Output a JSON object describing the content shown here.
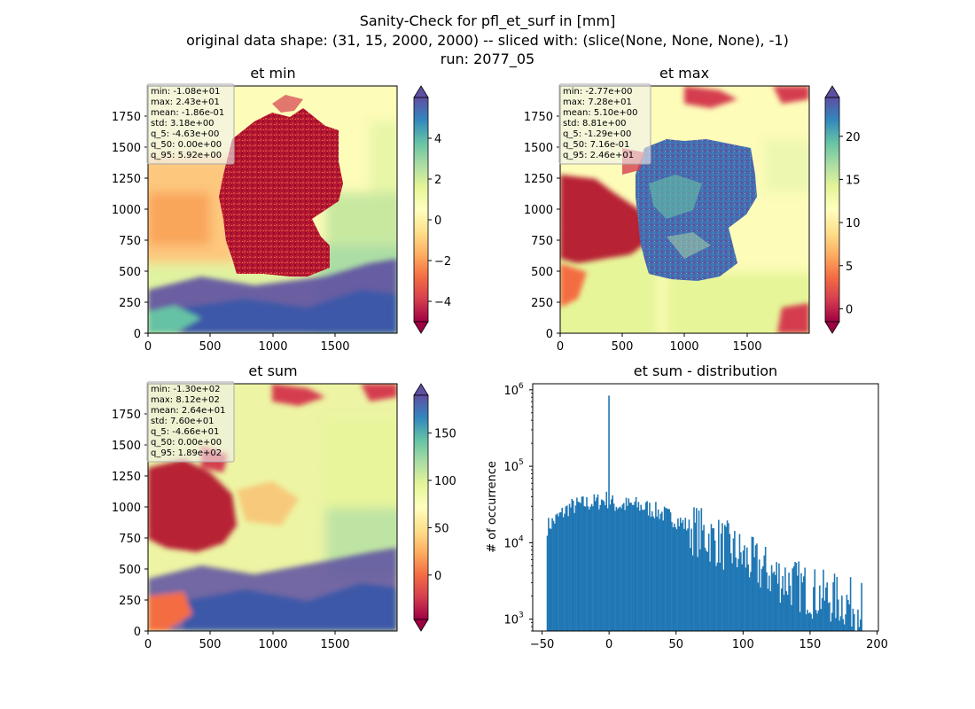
{
  "figure": {
    "title_lines": [
      "Sanity-Check for pfl_et_surf in [mm]",
      "original data shape: (31, 15, 2000, 2000) -- sliced with: (slice(None, None, None), -1)",
      "run: 2077_05"
    ]
  },
  "chart_data": [
    {
      "type": "heatmap",
      "title": "et min",
      "x_ticks": [
        "0",
        "500",
        "1000",
        "1500"
      ],
      "y_ticks": [
        "0",
        "250",
        "500",
        "750",
        "1000",
        "1250",
        "1500",
        "1750"
      ],
      "xlim": [
        0,
        2000
      ],
      "ylim": [
        0,
        2000
      ],
      "colormap": "Spectral",
      "colorbar": {
        "range": [
          -5,
          6
        ],
        "ticks": [
          "−4",
          "−2",
          "0",
          "2",
          "4"
        ],
        "tick_values": [
          -4,
          -2,
          0,
          2,
          4
        ],
        "extend": "both"
      },
      "stats": [
        "min: -1.08e+01",
        "max: 2.43e+01",
        "mean: -1.86e-01",
        "std: 3.18e+00",
        "q_5: -4.63e+00",
        "q_50: 0.00e+00",
        "q_95: 5.92e+00"
      ]
    },
    {
      "type": "heatmap",
      "title": "et max",
      "x_ticks": [
        "0",
        "500",
        "1000",
        "1500"
      ],
      "y_ticks": [
        "0",
        "250",
        "500",
        "750",
        "1000",
        "1250",
        "1500",
        "1750"
      ],
      "xlim": [
        0,
        2000
      ],
      "ylim": [
        0,
        2000
      ],
      "colormap": "Spectral",
      "colorbar": {
        "range": [
          -1.5,
          24.5
        ],
        "ticks": [
          "0",
          "5",
          "10",
          "15",
          "20"
        ],
        "tick_values": [
          0,
          5,
          10,
          15,
          20
        ],
        "extend": "both"
      },
      "stats": [
        "min: -2.77e+00",
        "max: 7.28e+01",
        "mean: 5.10e+00",
        "std: 8.81e+00",
        "q_5: -1.29e+00",
        "q_50: 7.16e-01",
        "q_95: 2.46e+01"
      ]
    },
    {
      "type": "heatmap",
      "title": "et sum",
      "x_ticks": [
        "0",
        "500",
        "1000",
        "1500"
      ],
      "y_ticks": [
        "0",
        "250",
        "500",
        "750",
        "1000",
        "1250",
        "1500",
        "1750"
      ],
      "xlim": [
        0,
        2000
      ],
      "ylim": [
        0,
        2000
      ],
      "colormap": "Spectral",
      "colorbar": {
        "range": [
          -47,
          190
        ],
        "ticks": [
          "0",
          "50",
          "100",
          "150"
        ],
        "tick_values": [
          0,
          50,
          100,
          150
        ],
        "extend": "both"
      },
      "stats": [
        "min: -1.30e+02",
        "max: 8.12e+02",
        "mean: 2.64e+01",
        "std: 7.60e+01",
        "q_5: -4.66e+01",
        "q_50: 0.00e+00",
        "q_95: 1.89e+02"
      ]
    },
    {
      "type": "bar",
      "title": "et sum - distribution",
      "ylabel": "# of occurrence",
      "xlabel": "",
      "yscale": "log",
      "xlim": [
        -57,
        201
      ],
      "ylim": [
        700,
        1200000
      ],
      "x_ticks": [
        -50,
        0,
        50,
        100,
        150,
        200
      ],
      "x_tick_labels": [
        "−50",
        "0",
        "50",
        "100",
        "150",
        "200"
      ],
      "y_ticks": [
        1000,
        10000,
        100000,
        1000000
      ],
      "y_tick_labels": [
        "10",
        "10",
        "10",
        "10"
      ],
      "y_tick_exponents": [
        "3",
        "4",
        "5",
        "6"
      ],
      "bin_range": [
        -46.6,
        188.9
      ],
      "bar_color": "#1f77b4",
      "spike": {
        "x": 0,
        "value": 840000
      },
      "profile_points": [
        [
          -46.6,
          16000
        ],
        [
          -40,
          20000
        ],
        [
          -30,
          29000
        ],
        [
          -20,
          32000
        ],
        [
          -10,
          34000
        ],
        [
          -2,
          37000
        ],
        [
          5,
          31000
        ],
        [
          20,
          31000
        ],
        [
          30,
          28000
        ],
        [
          40,
          24000
        ],
        [
          50,
          20000
        ],
        [
          60,
          16000
        ],
        [
          70,
          13000
        ],
        [
          80,
          10500
        ],
        [
          90,
          8500
        ],
        [
          100,
          6500
        ],
        [
          110,
          5000
        ],
        [
          120,
          4000
        ],
        [
          130,
          3400
        ],
        [
          140,
          2800
        ],
        [
          150,
          2300
        ],
        [
          160,
          2000
        ],
        [
          170,
          1800
        ],
        [
          180,
          1600
        ],
        [
          188.9,
          1500
        ]
      ]
    }
  ]
}
